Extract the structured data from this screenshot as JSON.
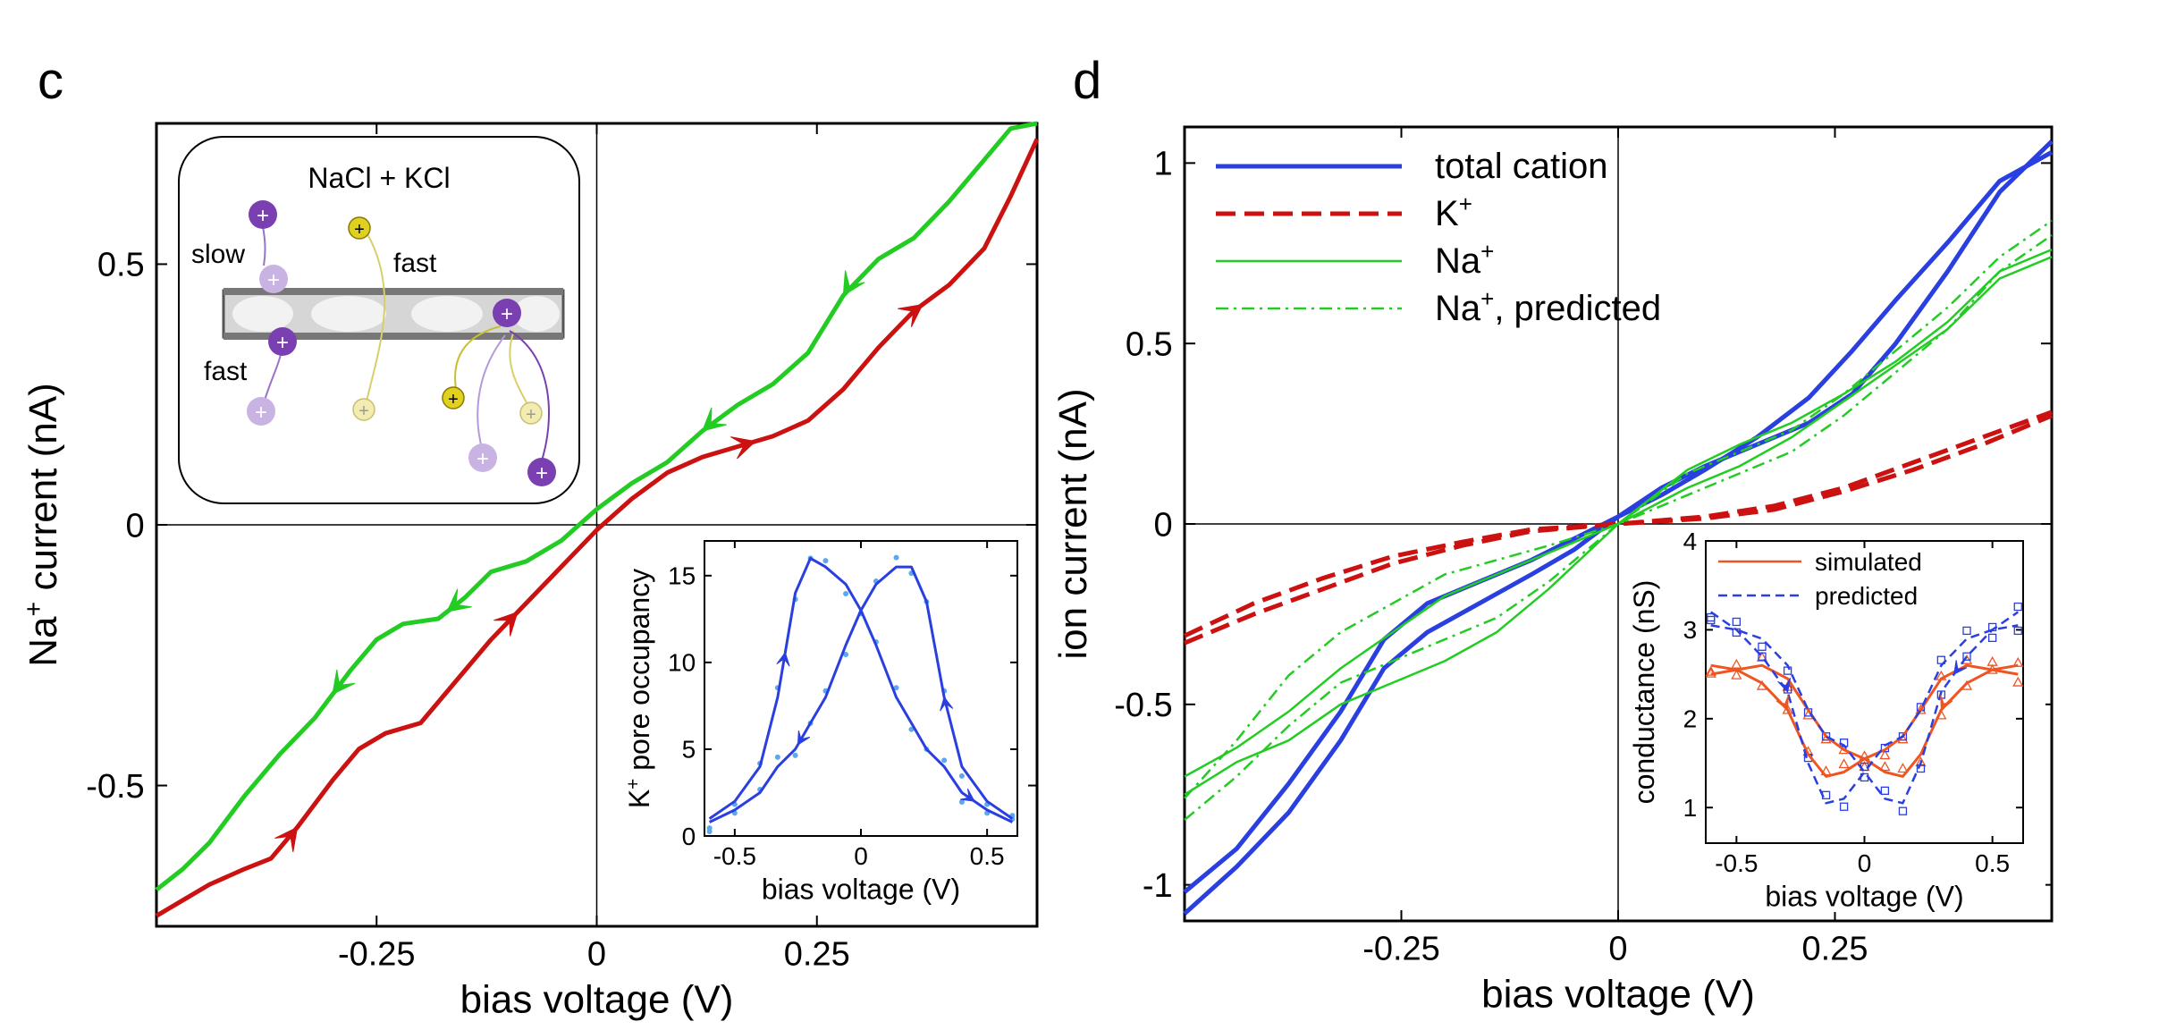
{
  "panel_labels": {
    "c": "c",
    "d": "d"
  },
  "colors": {
    "green": "#22cc22",
    "red": "#cc1111",
    "blue": "#2a3fe0",
    "lightblue": "#5aa8ee",
    "orange": "#ee5522",
    "purple": "#7a3fb0",
    "yellow": "#e0d020"
  },
  "chart_data": [
    {
      "id": "c-main",
      "type": "line",
      "xlabel": "bias voltage (V)",
      "ylabel_prefix": "Na",
      "ylabel_sup": "+",
      "ylabel_suffix": " current (nA)",
      "xlim": [
        -0.5,
        0.5
      ],
      "ylim": [
        -0.77,
        0.77
      ],
      "xticks": [
        -0.25,
        0,
        0.25
      ],
      "xtick_labels": [
        "-0.25",
        "0",
        "0.25"
      ],
      "yticks": [
        -0.5,
        0,
        0.5
      ],
      "ytick_labels": [
        "-0.5",
        "0",
        "0.5"
      ],
      "series": [
        {
          "color": "green",
          "x": [
            -0.5,
            -0.47,
            -0.44,
            -0.4,
            -0.36,
            -0.32,
            -0.28,
            -0.25,
            -0.22,
            -0.18,
            -0.15,
            -0.12,
            -0.08,
            -0.04,
            0,
            0.04,
            0.08,
            0.12,
            0.16,
            0.2,
            0.24,
            0.28,
            0.32,
            0.36,
            0.4,
            0.44,
            0.47,
            0.5
          ],
          "y": [
            -0.7,
            -0.66,
            -0.61,
            -0.52,
            -0.44,
            -0.37,
            -0.28,
            -0.22,
            -0.19,
            -0.18,
            -0.14,
            -0.09,
            -0.07,
            -0.03,
            0.03,
            0.08,
            0.12,
            0.18,
            0.23,
            0.27,
            0.33,
            0.44,
            0.51,
            0.55,
            0.62,
            0.7,
            0.76,
            0.77
          ]
        },
        {
          "color": "red",
          "x": [
            -0.5,
            -0.47,
            -0.44,
            -0.4,
            -0.37,
            -0.34,
            -0.3,
            -0.27,
            -0.24,
            -0.2,
            -0.16,
            -0.12,
            -0.08,
            -0.04,
            0,
            0.04,
            0.08,
            0.12,
            0.16,
            0.2,
            0.24,
            0.28,
            0.32,
            0.36,
            0.4,
            0.44,
            0.47,
            0.5
          ],
          "y": [
            -0.75,
            -0.72,
            -0.69,
            -0.66,
            -0.64,
            -0.58,
            -0.49,
            -0.43,
            -0.4,
            -0.38,
            -0.3,
            -0.22,
            -0.15,
            -0.08,
            -0.01,
            0.05,
            0.1,
            0.13,
            0.15,
            0.17,
            0.2,
            0.26,
            0.34,
            0.41,
            0.46,
            0.53,
            0.63,
            0.74
          ]
        }
      ],
      "arrows": [
        {
          "series": "green",
          "x": -0.3,
          "dir": -1
        },
        {
          "series": "green",
          "x": -0.17,
          "dir": -1
        },
        {
          "series": "green",
          "x": 0.12,
          "dir": -1
        },
        {
          "series": "green",
          "x": 0.28,
          "dir": -1
        },
        {
          "series": "red",
          "x": -0.34,
          "dir": 1
        },
        {
          "series": "red",
          "x": -0.09,
          "dir": 1
        },
        {
          "series": "red",
          "x": 0.18,
          "dir": 1
        },
        {
          "series": "red",
          "x": 0.37,
          "dir": 1
        }
      ]
    },
    {
      "id": "c-inset",
      "type": "line",
      "xlabel": "bias voltage (V)",
      "ylabel_prefix": "K",
      "ylabel_sup": "+",
      "ylabel_suffix": " pore occupancy",
      "xlim": [
        -0.62,
        0.62
      ],
      "ylim": [
        0,
        17
      ],
      "xticks": [
        -0.5,
        0,
        0.5
      ],
      "xtick_labels": [
        "-0.5",
        "0",
        "0.5"
      ],
      "yticks": [
        0,
        5,
        10,
        15
      ],
      "ytick_labels": [
        "0",
        "5",
        "10",
        "15"
      ],
      "series": [
        {
          "color": "blue",
          "x": [
            -0.6,
            -0.5,
            -0.4,
            -0.33,
            -0.26,
            -0.2,
            -0.14,
            -0.06,
            0,
            0.06,
            0.14,
            0.2,
            0.26,
            0.33,
            0.4,
            0.5,
            0.6
          ],
          "y": [
            1,
            2,
            4,
            8,
            14,
            16,
            15.5,
            14.5,
            13,
            11,
            8,
            6.5,
            5,
            4,
            2.5,
            1.5,
            0.8
          ]
        },
        {
          "color": "blue",
          "x": [
            -0.6,
            -0.5,
            -0.4,
            -0.33,
            -0.26,
            -0.2,
            -0.14,
            -0.06,
            0,
            0.06,
            0.14,
            0.2,
            0.26,
            0.33,
            0.4,
            0.5,
            0.6
          ],
          "y": [
            0.8,
            1.5,
            2.5,
            4,
            5,
            6.5,
            8,
            11,
            13,
            14.5,
            15.5,
            15.5,
            13.5,
            8,
            4,
            2,
            1
          ]
        }
      ]
    },
    {
      "id": "d-main",
      "type": "line",
      "xlabel": "bias voltage (V)",
      "ylabel": "ion current (nA)",
      "xlim": [
        -0.5,
        0.5
      ],
      "ylim": [
        -1.1,
        1.1
      ],
      "xticks": [
        -0.25,
        0,
        0.25
      ],
      "xtick_labels": [
        "-0.25",
        "0",
        "0.25"
      ],
      "yticks": [
        -1,
        -0.5,
        0,
        0.5,
        1
      ],
      "ytick_labels": [
        "-1",
        "-0.5",
        "0",
        "0.5",
        "1"
      ],
      "legend": [
        {
          "label": "total cation",
          "sup": "",
          "color": "blue",
          "style": "solid-thick"
        },
        {
          "label": "K",
          "sup": "+",
          "color": "red",
          "style": "dashed-thick"
        },
        {
          "label": "Na",
          "sup": "+",
          "color": "green",
          "style": "solid-thin"
        },
        {
          "label": "Na",
          "sup": "+",
          "suffix": ", predicted",
          "color": "green",
          "style": "dashdot"
        }
      ],
      "series": [
        {
          "name": "total cation",
          "color": "blue",
          "style": "solid-thick",
          "x": [
            -0.5,
            -0.44,
            -0.38,
            -0.32,
            -0.27,
            -0.22,
            -0.16,
            -0.1,
            -0.05,
            0,
            0.05,
            0.1,
            0.16,
            0.22,
            0.27,
            0.32,
            0.38,
            0.44,
            0.5
          ],
          "y": [
            -1.08,
            -0.95,
            -0.8,
            -0.6,
            -0.4,
            -0.3,
            -0.22,
            -0.14,
            -0.07,
            0.02,
            0.1,
            0.16,
            0.22,
            0.28,
            0.36,
            0.5,
            0.7,
            0.92,
            1.06
          ]
        },
        {
          "color": "blue",
          "style": "solid-thick",
          "x": [
            -0.5,
            -0.44,
            -0.38,
            -0.32,
            -0.27,
            -0.22,
            -0.16,
            -0.1,
            -0.05,
            0,
            0.05,
            0.1,
            0.16,
            0.22,
            0.27,
            0.32,
            0.38,
            0.44,
            0.5
          ],
          "y": [
            -1.02,
            -0.9,
            -0.72,
            -0.52,
            -0.32,
            -0.22,
            -0.16,
            -0.1,
            -0.04,
            0.02,
            0.08,
            0.15,
            0.24,
            0.35,
            0.48,
            0.62,
            0.78,
            0.95,
            1.03
          ]
        },
        {
          "name": "K+",
          "color": "red",
          "style": "dashed-thick",
          "x": [
            -0.5,
            -0.42,
            -0.34,
            -0.26,
            -0.18,
            -0.1,
            0,
            0.1,
            0.18,
            0.26,
            0.34,
            0.42,
            0.5
          ],
          "y": [
            -0.33,
            -0.25,
            -0.18,
            -0.11,
            -0.06,
            -0.02,
            0,
            0.02,
            0.05,
            0.1,
            0.17,
            0.24,
            0.31
          ]
        },
        {
          "color": "red",
          "style": "dashed-thick",
          "x": [
            -0.5,
            -0.42,
            -0.34,
            -0.26,
            -0.18,
            -0.1,
            0,
            0.1,
            0.18,
            0.26,
            0.34,
            0.42,
            0.5
          ],
          "y": [
            -0.31,
            -0.22,
            -0.15,
            -0.09,
            -0.05,
            -0.015,
            0,
            0.015,
            0.04,
            0.09,
            0.15,
            0.22,
            0.3
          ]
        },
        {
          "name": "Na+",
          "color": "green",
          "style": "solid-thin",
          "x": [
            -0.5,
            -0.44,
            -0.38,
            -0.32,
            -0.26,
            -0.2,
            -0.14,
            -0.08,
            0,
            0.08,
            0.14,
            0.2,
            0.26,
            0.32,
            0.38,
            0.44,
            0.5
          ],
          "y": [
            -0.75,
            -0.66,
            -0.6,
            -0.5,
            -0.44,
            -0.38,
            -0.3,
            -0.18,
            0,
            0.15,
            0.22,
            0.28,
            0.36,
            0.45,
            0.56,
            0.7,
            0.76
          ]
        },
        {
          "color": "green",
          "style": "solid-thin",
          "x": [
            -0.5,
            -0.44,
            -0.38,
            -0.32,
            -0.26,
            -0.2,
            -0.14,
            -0.08,
            0,
            0.08,
            0.14,
            0.2,
            0.26,
            0.32,
            0.38,
            0.44,
            0.5
          ],
          "y": [
            -0.7,
            -0.62,
            -0.52,
            -0.4,
            -0.3,
            -0.2,
            -0.14,
            -0.08,
            0,
            0.1,
            0.16,
            0.24,
            0.34,
            0.44,
            0.54,
            0.68,
            0.74
          ]
        },
        {
          "name": "Na+, predicted",
          "color": "green",
          "style": "dashdot",
          "x": [
            -0.5,
            -0.44,
            -0.38,
            -0.32,
            -0.26,
            -0.2,
            -0.14,
            -0.08,
            0,
            0.08,
            0.14,
            0.2,
            0.26,
            0.32,
            0.38,
            0.44,
            0.5
          ],
          "y": [
            -0.82,
            -0.7,
            -0.56,
            -0.44,
            -0.38,
            -0.32,
            -0.26,
            -0.16,
            0,
            0.14,
            0.2,
            0.26,
            0.36,
            0.48,
            0.6,
            0.74,
            0.84
          ]
        },
        {
          "color": "green",
          "style": "dashdot",
          "x": [
            -0.5,
            -0.44,
            -0.38,
            -0.32,
            -0.26,
            -0.2,
            -0.14,
            -0.08,
            0,
            0.08,
            0.14,
            0.2,
            0.26,
            0.32,
            0.38,
            0.44,
            0.5
          ],
          "y": [
            -0.76,
            -0.6,
            -0.42,
            -0.3,
            -0.22,
            -0.14,
            -0.1,
            -0.06,
            0,
            0.08,
            0.14,
            0.2,
            0.3,
            0.42,
            0.54,
            0.7,
            0.8
          ]
        }
      ]
    },
    {
      "id": "d-inset",
      "type": "line",
      "xlabel": "bias voltage (V)",
      "ylabel": "conductance (nS)",
      "xlim": [
        -0.62,
        0.62
      ],
      "ylim": [
        0.6,
        4
      ],
      "xticks": [
        -0.5,
        0,
        0.5
      ],
      "xtick_labels": [
        "-0.5",
        "0",
        "0.5"
      ],
      "yticks": [
        1,
        2,
        3,
        4
      ],
      "ytick_labels": [
        "1",
        "2",
        "3",
        "4"
      ],
      "legend": [
        {
          "label": "simulated",
          "color": "orange",
          "style": "solid"
        },
        {
          "label": "predicted",
          "color": "blue",
          "style": "dashed"
        }
      ],
      "series": [
        {
          "color": "orange",
          "style": "solid",
          "x": [
            -0.6,
            -0.5,
            -0.4,
            -0.3,
            -0.22,
            -0.15,
            -0.08,
            0,
            0.08,
            0.15,
            0.22,
            0.3,
            0.4,
            0.5,
            0.6
          ],
          "y": [
            2.6,
            2.55,
            2.4,
            2.1,
            1.6,
            1.35,
            1.4,
            1.55,
            1.65,
            1.8,
            2.1,
            2.45,
            2.6,
            2.55,
            2.5
          ]
        },
        {
          "color": "orange",
          "style": "solid",
          "x": [
            -0.6,
            -0.5,
            -0.4,
            -0.3,
            -0.22,
            -0.15,
            -0.08,
            0,
            0.08,
            0.15,
            0.22,
            0.3,
            0.4,
            0.5,
            0.6
          ],
          "y": [
            2.5,
            2.55,
            2.6,
            2.45,
            2.1,
            1.8,
            1.65,
            1.55,
            1.4,
            1.35,
            1.6,
            2.1,
            2.4,
            2.55,
            2.6
          ]
        },
        {
          "color": "blue",
          "style": "dashed",
          "x": [
            -0.6,
            -0.5,
            -0.4,
            -0.3,
            -0.22,
            -0.15,
            -0.08,
            0,
            0.08,
            0.15,
            0.22,
            0.3,
            0.4,
            0.5,
            0.6
          ],
          "y": [
            3.2,
            3.0,
            2.7,
            2.3,
            1.5,
            1.05,
            1.1,
            1.4,
            1.7,
            1.8,
            2.1,
            2.6,
            2.9,
            3.0,
            3.05
          ]
        },
        {
          "color": "blue",
          "style": "dashed",
          "x": [
            -0.6,
            -0.5,
            -0.4,
            -0.3,
            -0.22,
            -0.15,
            -0.08,
            0,
            0.08,
            0.15,
            0.22,
            0.3,
            0.4,
            0.5,
            0.6
          ],
          "y": [
            3.05,
            3.0,
            2.9,
            2.6,
            2.1,
            1.8,
            1.7,
            1.4,
            1.1,
            1.05,
            1.5,
            2.3,
            2.7,
            3.0,
            3.2
          ]
        }
      ]
    }
  ],
  "schematic": {
    "title": "NaCl + KCl",
    "label_slow": "slow",
    "label_fast_left": "fast",
    "label_fast_right": "fast",
    "ion_symbol": "+"
  }
}
